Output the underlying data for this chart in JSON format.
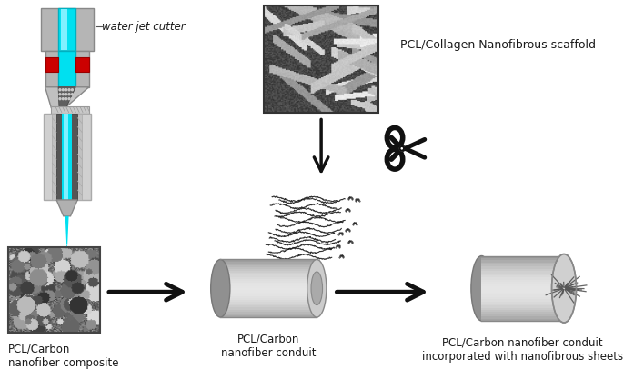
{
  "bg_color": "#ffffff",
  "labels": {
    "water_jet": "water jet cutter",
    "pcl_collagen": "PCL/Collagen Nanofibrous scaffold",
    "pcl_carbon_composite": "PCL/Carbon\nnanofiber composite",
    "pcl_carbon_conduit": "PCL/Carbon\nnanofiber conduit",
    "pcl_carbon_final": "PCL/Carbon nanofiber conduit\nincorporated with nanofibrous sheets"
  },
  "label_fontsize": 8.5,
  "colors": {
    "cyan": "#00e0f0",
    "cyan_light": "#80f0ff",
    "dark_cyan": "#00b0c0",
    "red": "#cc0000",
    "gray_outer": "#aaaaaa",
    "gray_mid": "#c0c0c0",
    "gray_light": "#d8d8d8",
    "gray_dark": "#707070",
    "gray_darker": "#505050",
    "black": "#111111",
    "white": "#ffffff"
  }
}
